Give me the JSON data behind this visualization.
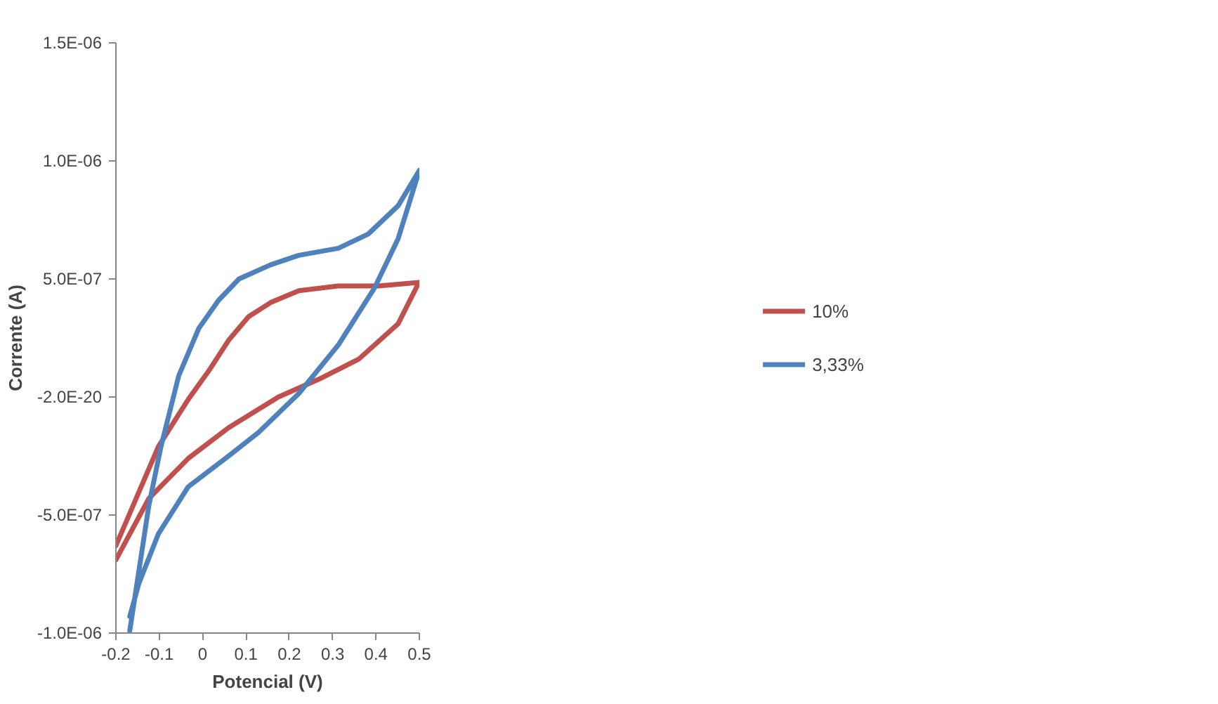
{
  "chart_data": {
    "type": "line",
    "xlabel": "Potencial (V)",
    "ylabel": "Corrente (A)",
    "xlim": [
      -0.2,
      0.5
    ],
    "xticks": [
      -0.2,
      -0.1,
      0,
      0.1,
      0.2,
      0.3,
      0.4,
      0.5
    ],
    "ylim": [
      -1e-06,
      1.5e-06
    ],
    "yticks": [
      {
        "value": -1e-06,
        "label": "-1.0E-06"
      },
      {
        "value": -5e-07,
        "label": "-5.0E-07"
      },
      {
        "value": 0,
        "label": "-2.0E-20"
      },
      {
        "value": 5e-07,
        "label": "5.0E-07"
      },
      {
        "value": 1e-06,
        "label": "1.0E-06"
      },
      {
        "value": 1.5e-06,
        "label": "1.5E-06"
      }
    ],
    "grid": false,
    "legend": "right",
    "marker": "none",
    "line_style": "solid",
    "series": [
      {
        "name": "10%",
        "color": "#c0504d",
        "x": [
          -0.2,
          -0.102,
          -0.033,
          0.014,
          0.06,
          0.106,
          0.157,
          0.222,
          0.313,
          0.406,
          0.499,
          0.451,
          0.36,
          0.268,
          0.175,
          0.06,
          -0.033,
          -0.124,
          -0.2
        ],
        "values": [
          -6.3e-07,
          -2.1e-07,
          -1e-08,
          1.1e-07,
          2.4e-07,
          3.4e-07,
          4e-07,
          4.5e-07,
          4.7e-07,
          4.7e-07,
          4.85e-07,
          3.1e-07,
          1.6e-07,
          7.5e-08,
          0,
          -1.3e-07,
          -2.6e-07,
          -4.3e-07,
          -6.9e-07
        ]
      },
      {
        "name": "3,33%",
        "color": "#4f81bd",
        "x": [
          -0.168,
          -0.124,
          -0.096,
          -0.055,
          -0.009,
          0.037,
          0.084,
          0.157,
          0.222,
          0.313,
          0.382,
          0.451,
          0.5,
          0.451,
          0.396,
          0.313,
          0.222,
          0.129,
          0.06,
          -0.033,
          -0.102,
          -0.147,
          -0.168
        ],
        "values": [
          -9.9e-07,
          -4.6e-07,
          -2.1e-07,
          9e-08,
          2.9e-07,
          4.1e-07,
          5e-07,
          5.6e-07,
          6e-07,
          6.3e-07,
          6.9e-07,
          8.1e-07,
          9.6e-07,
          6.7e-07,
          4.6e-07,
          2.2e-07,
          1.5e-08,
          -1.5e-07,
          -2.5e-07,
          -3.8e-07,
          -5.8e-07,
          -7.9e-07,
          -9.3e-07
        ]
      }
    ]
  }
}
